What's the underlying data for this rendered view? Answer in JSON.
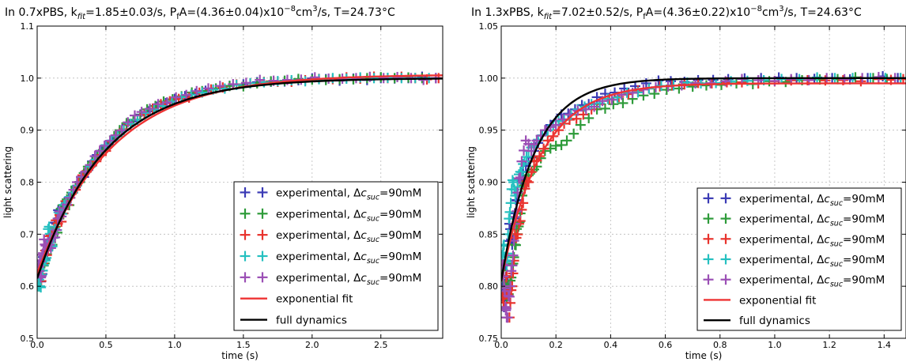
{
  "chart_data": [
    {
      "type": "scatter",
      "title": "In 0.7xPBS, k_fit=1.85±0.03/s, P_fA=(4.36±0.04)x10^-8cm^3/s, T=24.73°C",
      "title_parts": {
        "a": "In 0.7xPBS, k",
        "a_sub": "fit",
        "b": "=1.85±0.03/s, P",
        "b_sub": "f",
        "c": "A=(4.36±0.04)x10",
        "c_sup": "−8",
        "d": "cm",
        "d_sup": "3",
        "e": "/s, T=24.73°C"
      },
      "xlabel": "time (s)",
      "ylabel": "light scattering",
      "xlim": [
        0,
        2.95
      ],
      "ylim": [
        0.5,
        1.1
      ],
      "xticks": [
        0.0,
        0.5,
        1.0,
        1.5,
        2.0,
        2.5
      ],
      "xtick_labels": [
        "0.0",
        "0.5",
        "1.0",
        "1.5",
        "2.0",
        "2.5"
      ],
      "yticks": [
        0.5,
        0.6,
        0.7,
        0.8,
        0.9,
        1.0,
        1.1
      ],
      "ytick_labels": [
        "0.5",
        "0.6",
        "0.7",
        "0.8",
        "0.9",
        "1.0",
        "1.1"
      ],
      "grid": true,
      "legend_position": "lower-right",
      "series": [
        {
          "name": "experimental, Δc_suc=90mM",
          "color": "#3b3bb5",
          "marker": "plus",
          "seed": 11,
          "x": [
            0.01,
            0.02,
            0.03,
            0.05,
            0.07,
            0.1,
            0.14,
            0.18,
            0.23,
            0.28,
            0.34,
            0.4,
            0.47,
            0.55,
            0.65,
            0.75,
            0.87,
            1.0,
            1.15,
            1.3,
            1.5,
            1.7,
            1.9,
            2.1,
            2.3,
            2.5,
            2.7,
            2.9
          ],
          "y": [
            0.61,
            0.63,
            0.62,
            0.66,
            0.67,
            0.69,
            0.72,
            0.75,
            0.77,
            0.79,
            0.81,
            0.84,
            0.86,
            0.88,
            0.91,
            0.93,
            0.945,
            0.96,
            0.97,
            0.98,
            0.988,
            0.993,
            0.996,
            0.998,
            0.999,
            1.0,
            1.0,
            1.0
          ]
        },
        {
          "name": "experimental, Δc_suc=90mM",
          "color": "#2e9b3a",
          "marker": "plus",
          "seed": 23,
          "x": [
            0.01,
            0.03,
            0.04,
            0.06,
            0.09,
            0.12,
            0.16,
            0.2,
            0.25,
            0.31,
            0.37,
            0.44,
            0.52,
            0.6,
            0.7,
            0.8,
            0.92,
            1.05,
            1.2,
            1.4,
            1.6,
            1.8,
            2.0,
            2.2,
            2.4,
            2.6,
            2.8
          ],
          "y": [
            0.6,
            0.64,
            0.63,
            0.65,
            0.68,
            0.7,
            0.73,
            0.75,
            0.78,
            0.8,
            0.83,
            0.85,
            0.87,
            0.9,
            0.92,
            0.94,
            0.955,
            0.965,
            0.975,
            0.985,
            0.99,
            0.995,
            0.997,
            0.998,
            1.0,
            1.0,
            1.0
          ]
        },
        {
          "name": "experimental, Δc_suc=90mM",
          "color": "#e8332d",
          "marker": "plus",
          "seed": 37,
          "x": [
            0.02,
            0.03,
            0.05,
            0.08,
            0.11,
            0.15,
            0.19,
            0.24,
            0.3,
            0.36,
            0.43,
            0.5,
            0.58,
            0.68,
            0.78,
            0.9,
            1.03,
            1.18,
            1.35,
            1.55,
            1.75,
            1.95,
            2.15,
            2.35,
            2.55,
            2.75,
            2.92
          ],
          "y": [
            0.62,
            0.61,
            0.65,
            0.67,
            0.7,
            0.72,
            0.74,
            0.77,
            0.8,
            0.82,
            0.84,
            0.86,
            0.89,
            0.91,
            0.93,
            0.95,
            0.96,
            0.972,
            0.982,
            0.99,
            0.993,
            0.996,
            0.998,
            0.999,
            1.0,
            1.0,
            1.0
          ]
        },
        {
          "name": "experimental, Δc_suc=90mM",
          "color": "#25c0c0",
          "marker": "plus",
          "seed": 41,
          "x": [
            0.01,
            0.02,
            0.04,
            0.06,
            0.08,
            0.1,
            0.13,
            0.17,
            0.21,
            0.26,
            0.32,
            0.39,
            0.46,
            0.54,
            0.63,
            0.73,
            0.85,
            0.98,
            1.12,
            1.28,
            1.45,
            1.65,
            1.85,
            2.05,
            2.25,
            2.45,
            2.65,
            2.85
          ],
          "y": [
            0.6,
            0.6,
            0.63,
            0.65,
            0.71,
            0.68,
            0.71,
            0.74,
            0.76,
            0.78,
            0.81,
            0.83,
            0.86,
            0.88,
            0.9,
            0.92,
            0.94,
            0.955,
            0.968,
            0.978,
            0.987,
            0.992,
            0.996,
            0.998,
            0.999,
            1.0,
            1.0,
            1.0
          ]
        },
        {
          "name": "experimental, Δc_suc=90mM",
          "color": "#9b4fb5",
          "marker": "plus",
          "seed": 53,
          "x": [
            0.01,
            0.02,
            0.03,
            0.05,
            0.07,
            0.09,
            0.12,
            0.15,
            0.19,
            0.24,
            0.29,
            0.35,
            0.42,
            0.49,
            0.57,
            0.66,
            0.76,
            0.88,
            1.01,
            1.16,
            1.33,
            1.52,
            1.72,
            1.92,
            2.12,
            2.32,
            2.52,
            2.72,
            2.9
          ],
          "y": [
            0.64,
            0.65,
            0.62,
            0.69,
            0.67,
            0.68,
            0.7,
            0.73,
            0.75,
            0.77,
            0.8,
            0.82,
            0.85,
            0.87,
            0.89,
            0.915,
            0.935,
            0.95,
            0.963,
            0.975,
            0.985,
            0.991,
            0.995,
            0.997,
            0.999,
            1.0,
            1.0,
            1.0,
            1.0
          ]
        }
      ],
      "lines": [
        {
          "name": "exponential fit",
          "color": "#ee3333",
          "kind": "exp",
          "y0": 0.625,
          "yinf": 1.007,
          "k": 1.85
        },
        {
          "name": "full dynamics",
          "color": "#000000",
          "kind": "exp",
          "y0": 0.615,
          "yinf": 1.0,
          "k": 2.05
        }
      ]
    },
    {
      "type": "scatter",
      "title": "In 1.3xPBS, k_fit=7.02±0.52/s, P_fA=(4.36±0.22)x10^-8cm^3/s, T=24.63°C",
      "title_parts": {
        "a": "In 1.3xPBS, k",
        "a_sub": "fit",
        "b": "=7.02±0.52/s, P",
        "b_sub": "f",
        "c": "A=(4.36±0.22)x10",
        "c_sup": "−8",
        "d": "cm",
        "d_sup": "3",
        "e": "/s, T=24.63°C"
      },
      "xlabel": "time (s)",
      "ylabel": "light scattering",
      "xlim": [
        0,
        1.48
      ],
      "ylim": [
        0.75,
        1.05
      ],
      "xticks": [
        0.0,
        0.2,
        0.4,
        0.6,
        0.8,
        1.0,
        1.2,
        1.4
      ],
      "xtick_labels": [
        "0.0",
        "0.2",
        "0.4",
        "0.6",
        "0.8",
        "1.0",
        "1.2",
        "1.4"
      ],
      "yticks": [
        0.75,
        0.8,
        0.85,
        0.9,
        0.95,
        1.0,
        1.05
      ],
      "ytick_labels": [
        "0.75",
        "0.80",
        "0.85",
        "0.90",
        "0.95",
        "1.00",
        "1.05"
      ],
      "grid": true,
      "legend_position": "lower-right",
      "series": [
        {
          "name": "experimental, Δc_suc=90mM",
          "color": "#3b3bb5",
          "marker": "plus",
          "seed": 7,
          "x": [
            0.005,
            0.01,
            0.015,
            0.02,
            0.03,
            0.04,
            0.05,
            0.06,
            0.08,
            0.1,
            0.12,
            0.15,
            0.18,
            0.22,
            0.27,
            0.32,
            0.38,
            0.45,
            0.53,
            0.62,
            0.72,
            0.83,
            0.95,
            1.08,
            1.21,
            1.34,
            1.45
          ],
          "y": [
            0.8,
            0.78,
            0.82,
            0.79,
            0.86,
            0.84,
            0.87,
            0.9,
            0.91,
            0.92,
            0.93,
            0.945,
            0.955,
            0.965,
            0.97,
            0.975,
            0.985,
            0.99,
            0.995,
            0.997,
            0.998,
            0.999,
            1.0,
            1.0,
            1.0,
            1.0,
            1.0
          ]
        },
        {
          "name": "experimental, Δc_suc=90mM",
          "color": "#2e9b3a",
          "marker": "plus",
          "seed": 19,
          "x": [
            0.005,
            0.01,
            0.02,
            0.03,
            0.04,
            0.05,
            0.06,
            0.07,
            0.09,
            0.11,
            0.13,
            0.16,
            0.2,
            0.24,
            0.29,
            0.35,
            0.41,
            0.48,
            0.56,
            0.65,
            0.75,
            0.86,
            0.98,
            1.1,
            1.23,
            1.36,
            1.46
          ],
          "y": [
            0.81,
            0.8,
            0.79,
            0.8,
            0.82,
            0.84,
            0.85,
            0.87,
            0.9,
            0.91,
            0.915,
            0.93,
            0.935,
            0.94,
            0.955,
            0.97,
            0.975,
            0.98,
            0.985,
            0.99,
            0.993,
            0.995,
            0.997,
            0.998,
            0.999,
            1.0,
            1.0
          ]
        },
        {
          "name": "experimental, Δc_suc=90mM",
          "color": "#e8332d",
          "marker": "plus",
          "seed": 29,
          "x": [
            0.005,
            0.015,
            0.02,
            0.03,
            0.04,
            0.05,
            0.065,
            0.08,
            0.1,
            0.12,
            0.14,
            0.17,
            0.21,
            0.25,
            0.3,
            0.36,
            0.43,
            0.5,
            0.58,
            0.67,
            0.77,
            0.88,
            1.0,
            1.12,
            1.25,
            1.38,
            1.47
          ],
          "y": [
            0.79,
            0.78,
            0.81,
            0.77,
            0.8,
            0.85,
            0.86,
            0.88,
            0.9,
            0.92,
            0.925,
            0.94,
            0.95,
            0.96,
            0.965,
            0.975,
            0.982,
            0.988,
            0.992,
            0.994,
            0.995,
            0.996,
            0.997,
            0.998,
            0.998,
            0.999,
            0.999
          ]
        },
        {
          "name": "experimental, Δc_suc=90mM",
          "color": "#25c0c0",
          "marker": "plus",
          "seed": 31,
          "x": [
            0.005,
            0.01,
            0.02,
            0.025,
            0.035,
            0.045,
            0.055,
            0.07,
            0.085,
            0.1,
            0.12,
            0.15,
            0.19,
            0.23,
            0.28,
            0.33,
            0.39,
            0.46,
            0.54,
            0.63,
            0.73,
            0.84,
            0.96,
            1.09,
            1.22,
            1.35,
            1.46
          ],
          "y": [
            0.83,
            0.84,
            0.82,
            0.85,
            0.88,
            0.9,
            0.89,
            0.91,
            0.92,
            0.93,
            0.935,
            0.945,
            0.955,
            0.96,
            0.97,
            0.975,
            0.98,
            0.986,
            0.99,
            0.993,
            0.995,
            0.997,
            0.998,
            0.999,
            1.0,
            1.0,
            1.0
          ]
        },
        {
          "name": "experimental, Δc_suc=90mM",
          "color": "#9b4fb5",
          "marker": "plus",
          "seed": 43,
          "x": [
            0.005,
            0.01,
            0.015,
            0.02,
            0.03,
            0.04,
            0.05,
            0.06,
            0.075,
            0.09,
            0.11,
            0.13,
            0.16,
            0.2,
            0.25,
            0.31,
            0.37,
            0.44,
            0.52,
            0.61,
            0.71,
            0.82,
            0.94,
            1.06,
            1.19,
            1.32,
            1.44
          ],
          "y": [
            0.82,
            0.8,
            0.78,
            0.77,
            0.79,
            0.82,
            0.86,
            0.89,
            0.92,
            0.94,
            0.93,
            0.94,
            0.95,
            0.955,
            0.965,
            0.97,
            0.978,
            0.984,
            0.989,
            0.992,
            0.995,
            0.997,
            0.998,
            0.999,
            1.0,
            1.0,
            1.0
          ]
        }
      ],
      "lines": [
        {
          "name": "exponential fit",
          "color": "#ee3333",
          "kind": "exp",
          "y0": 0.805,
          "yinf": 0.995,
          "k": 7.02
        },
        {
          "name": "full dynamics",
          "color": "#000000",
          "kind": "exp",
          "y0": 0.805,
          "yinf": 1.0,
          "k": 8.2
        }
      ]
    }
  ]
}
